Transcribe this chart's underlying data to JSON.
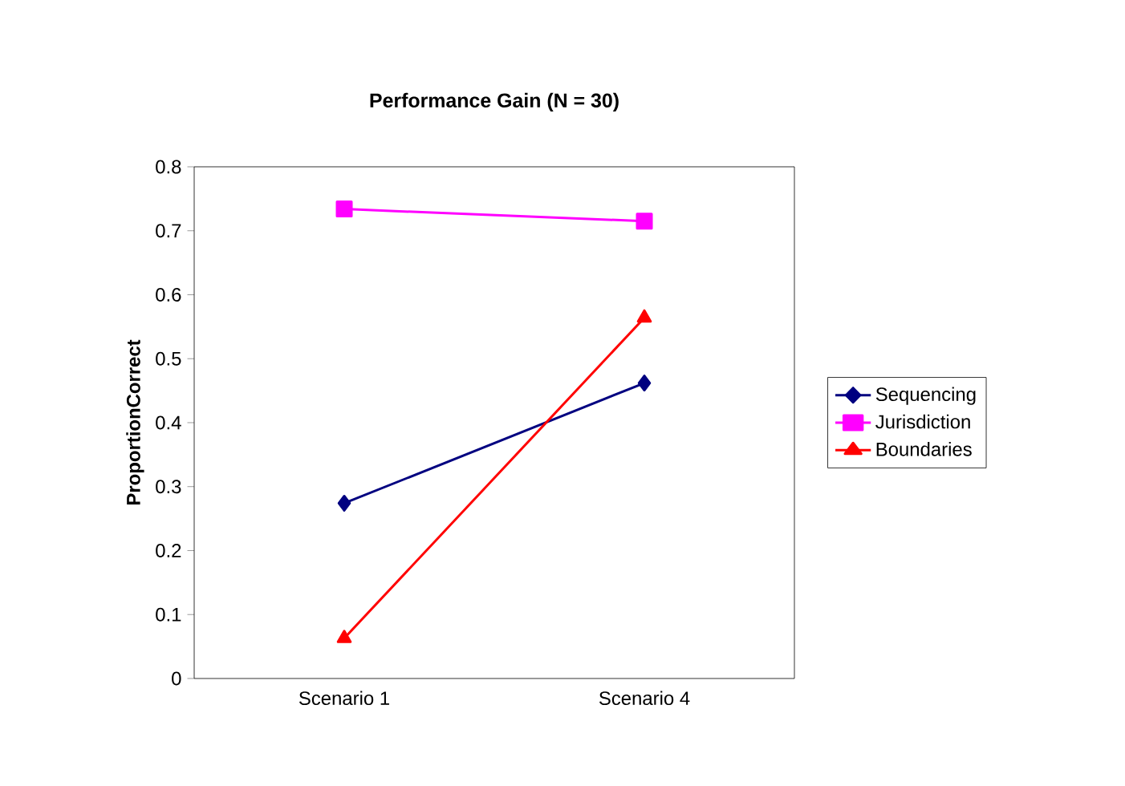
{
  "chart_data": {
    "type": "line",
    "title": "Performance Gain (N = 30)",
    "ylabel": "ProportionCorrect",
    "categories": [
      "Scenario 1",
      "Scenario 4"
    ],
    "series": [
      {
        "name": "Sequencing",
        "color": "#000080",
        "marker": "diamond",
        "values": [
          0.274,
          0.462
        ]
      },
      {
        "name": "Jurisdiction",
        "color": "#ff00ff",
        "marker": "square",
        "values": [
          0.734,
          0.715
        ]
      },
      {
        "name": "Boundaries",
        "color": "#ff0000",
        "marker": "triangle",
        "values": [
          0.063,
          0.564
        ]
      }
    ],
    "ylim": [
      0,
      0.8
    ],
    "yticks": [
      0,
      0.1,
      0.2,
      0.3,
      0.4,
      0.5,
      0.6,
      0.7,
      0.8
    ],
    "grid": false,
    "legend": "right",
    "line_style": "solid"
  }
}
